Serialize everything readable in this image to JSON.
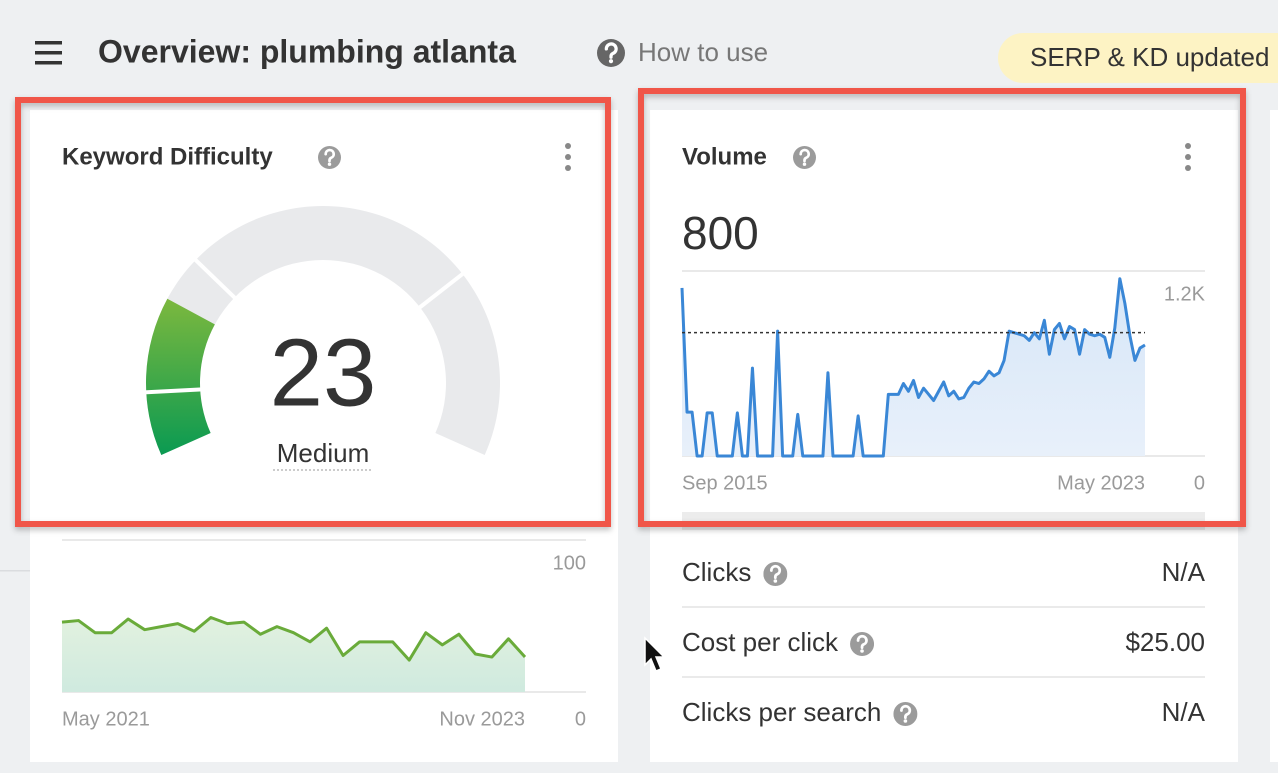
{
  "header": {
    "title": "Overview: plumbing atlanta",
    "help_link": "How to use"
  },
  "badge": "SERP & KD updated",
  "keyword_difficulty": {
    "title": "Keyword Difficulty",
    "score": 23,
    "level": "Medium",
    "history": {
      "x_labels": [
        "May 2021",
        "Nov 2023"
      ],
      "values": [
        46,
        47,
        39,
        39,
        48,
        41,
        43,
        45,
        40,
        49,
        45,
        46,
        38,
        43,
        39,
        33,
        42,
        24,
        33,
        33,
        33,
        21,
        39,
        31,
        38,
        25,
        23,
        35,
        23
      ],
      "ylim": [
        0,
        100
      ],
      "yticks": [
        0,
        100
      ]
    }
  },
  "volume": {
    "title": "Volume",
    "value": 800,
    "history": {
      "x_labels": [
        "Sep 2015",
        "May 2023"
      ],
      "values": [
        1090,
        285,
        285,
        0,
        0,
        280,
        280,
        0,
        0,
        0,
        0,
        280,
        0,
        0,
        570,
        0,
        0,
        0,
        0,
        810,
        0,
        0,
        0,
        270,
        0,
        0,
        0,
        0,
        0,
        540,
        0,
        0,
        0,
        0,
        0,
        260,
        0,
        0,
        0,
        0,
        0,
        400,
        400,
        400,
        470,
        420,
        490,
        380,
        440,
        400,
        360,
        420,
        480,
        390,
        420,
        370,
        380,
        440,
        480,
        470,
        500,
        550,
        520,
        540,
        620,
        810,
        800,
        790,
        780,
        750,
        800,
        760,
        880,
        660,
        820,
        860,
        760,
        840,
        820,
        660,
        820,
        790,
        780,
        790,
        770,
        640,
        830,
        1150,
        990,
        780,
        620,
        700,
        720
      ],
      "ylim": [
        0,
        1200
      ],
      "yticks": [
        0,
        {
          "value": 1200,
          "label": "1.2K"
        }
      ]
    }
  },
  "metrics": [
    {
      "label": "Clicks",
      "value": "N/A"
    },
    {
      "label": "Cost per click",
      "value": "$25.00"
    },
    {
      "label": "Clicks per search",
      "value": "N/A"
    }
  ]
}
